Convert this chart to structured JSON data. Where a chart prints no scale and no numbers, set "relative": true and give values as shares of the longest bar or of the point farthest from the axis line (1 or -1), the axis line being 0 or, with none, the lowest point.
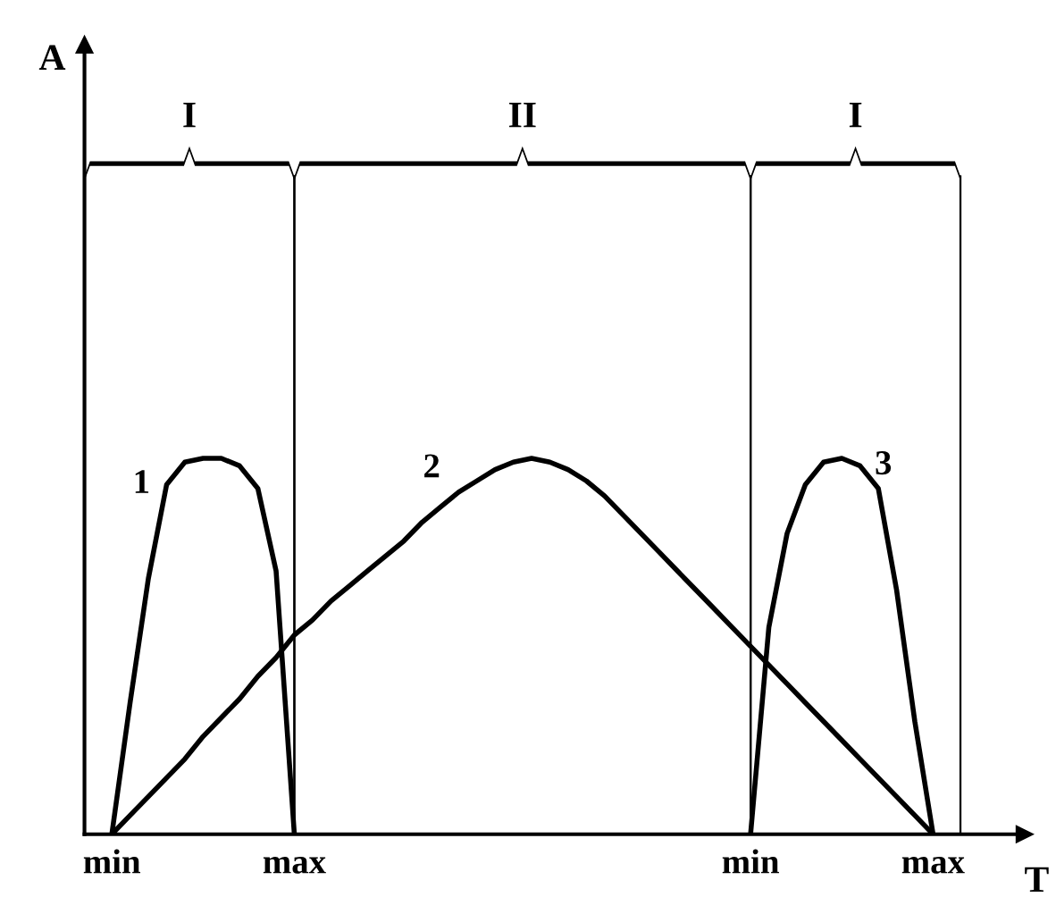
{
  "chart_data": {
    "type": "line",
    "relative": true,
    "xlabel": "T",
    "categories": [
      "min",
      null,
      null,
      null,
      null,
      null,
      null,
      null,
      null,
      null,
      "max",
      null,
      null,
      null,
      null,
      null,
      null,
      null,
      null,
      null,
      null,
      null,
      null,
      null,
      null,
      null,
      null,
      null,
      null,
      null,
      null,
      null,
      null,
      null,
      null,
      "min",
      null,
      null,
      null,
      null,
      null,
      null,
      null,
      null,
      null,
      "max",
      null,
      null
    ],
    "series": [
      {
        "name": "1",
        "color": "#000000",
        "values": [
          0,
          0.35,
          0.68,
          0.93,
          0.99,
          1,
          1,
          0.98,
          0.92,
          0.7,
          0,
          null,
          null,
          null,
          null,
          null,
          null,
          null,
          null,
          null,
          null,
          null,
          null,
          null,
          null,
          null,
          null,
          null,
          null,
          null,
          null,
          null,
          null,
          null,
          null,
          null,
          null,
          null,
          null,
          null,
          null,
          null,
          null,
          null,
          null,
          null,
          null,
          null
        ]
      },
      {
        "name": "2",
        "color": "#000000",
        "values": [
          0,
          0.05,
          0.1,
          0.15,
          0.2,
          0.26,
          0.31,
          0.36,
          0.42,
          0.47,
          0.53,
          0.57,
          0.62,
          0.66,
          0.7,
          0.74,
          0.78,
          0.83,
          0.87,
          0.91,
          0.94,
          0.97,
          0.99,
          1,
          0.99,
          0.97,
          0.94,
          0.9,
          0.85,
          0.8,
          0.75,
          0.7,
          0.65,
          0.6,
          0.55,
          0.5,
          0.45,
          0.4,
          0.35,
          0.3,
          0.25,
          0.2,
          0.15,
          0.1,
          0.05,
          0,
          null,
          null
        ]
      },
      {
        "name": "3",
        "color": "#000000",
        "values": [
          null,
          null,
          null,
          null,
          null,
          null,
          null,
          null,
          null,
          null,
          null,
          null,
          null,
          null,
          null,
          null,
          null,
          null,
          null,
          null,
          null,
          null,
          null,
          null,
          null,
          null,
          null,
          null,
          null,
          null,
          null,
          null,
          null,
          null,
          null,
          0,
          0.55,
          0.8,
          0.93,
          0.99,
          1,
          0.98,
          0.92,
          0.65,
          0.3,
          0,
          null,
          null
        ]
      }
    ],
    "annotations": [
      "A",
      "I",
      "II",
      "I"
    ],
    "grid": false,
    "legend": false,
    "marker": "none",
    "line_style": "solid"
  }
}
